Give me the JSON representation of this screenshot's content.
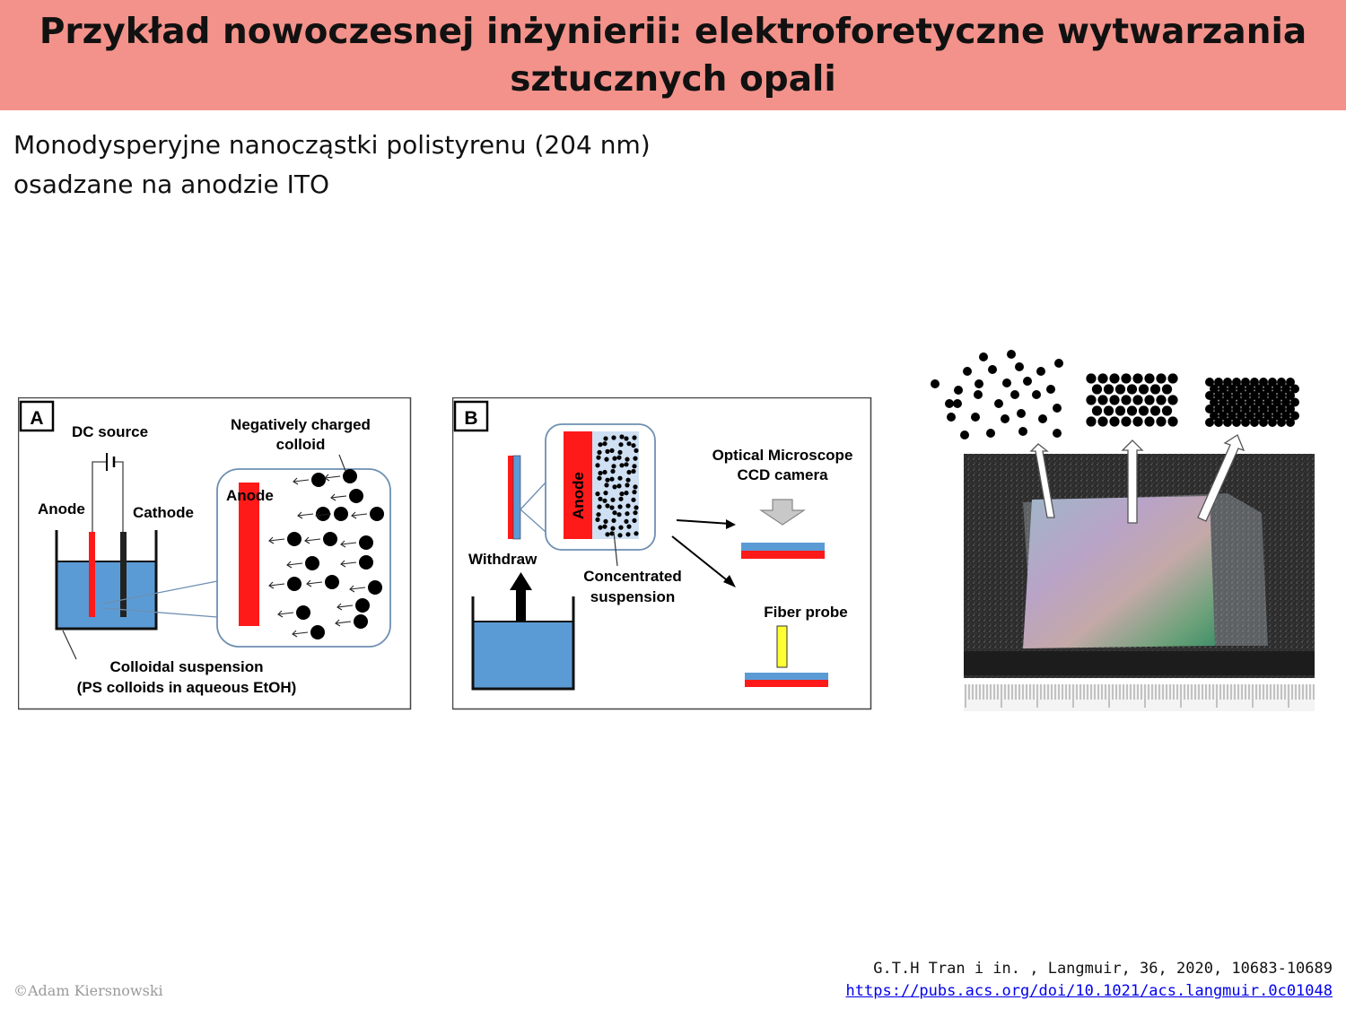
{
  "title": {
    "line1": "Przykład nowoczesnej inżynierii: elektroforetyczne wytwarzania",
    "line2": "sztucznych opali"
  },
  "intro": {
    "line1": "Monodysperyjne nanocząstki polistyrenu (204 nm)",
    "line2": "osadzane na anodzie ITO"
  },
  "panel_a": {
    "letter": "A",
    "dc_source": "DC source",
    "anode": "Anode",
    "cathode": "Cathode",
    "zoom_anode": "Anode",
    "neg_charged_1": "Negatively charged",
    "neg_charged_2": "colloid",
    "suspension_1": "Colloidal suspension",
    "suspension_2": "(PS colloids in aqueous EtOH)"
  },
  "panel_b": {
    "letter": "B",
    "anode": "Anode",
    "withdraw": "Withdraw",
    "concentrated_1": "Concentrated",
    "concentrated_2": "suspension",
    "microscope_1": "Optical Microscope",
    "microscope_2": "CCD camera",
    "fiber_probe": "Fiber probe"
  },
  "colors": {
    "title_bg": "#f2928a",
    "electrode_red": "#ff1a1a",
    "liquid_blue": "#5b9bd5",
    "probe_yellow": "#ffff33"
  },
  "citation": {
    "text": "G.T.H Tran i in. , Langmuir, 36, 2020, 10683-10689",
    "url": "https://pubs.acs.org/doi/10.1021/acs.langmuir.0c01048"
  },
  "copyright": "©Adam Kiersnowski"
}
